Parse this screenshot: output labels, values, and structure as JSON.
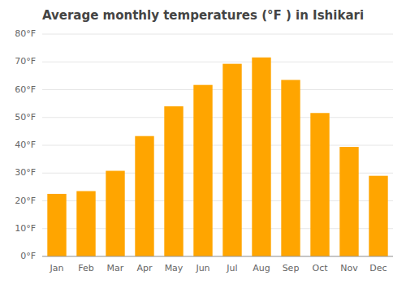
{
  "chart_data": {
    "type": "bar",
    "title": "Average monthly temperatures (°F ) in Ishikari",
    "categories": [
      "Jan",
      "Feb",
      "Mar",
      "Apr",
      "May",
      "Jun",
      "Jul",
      "Aug",
      "Sep",
      "Oct",
      "Nov",
      "Dec"
    ],
    "values": [
      22.5,
      23.5,
      30.8,
      43.3,
      54.0,
      61.7,
      69.3,
      71.6,
      63.5,
      51.6,
      39.4,
      29.0
    ],
    "color": "#FFA500",
    "ylim": [
      0,
      80
    ],
    "yticks": [
      {
        "value": 0,
        "label": "0°F"
      },
      {
        "value": 10,
        "label": "10°F"
      },
      {
        "value": 20,
        "label": "20°F"
      },
      {
        "value": 30,
        "label": "30°F"
      },
      {
        "value": 40,
        "label": "40°F"
      },
      {
        "value": 50,
        "label": "50°F"
      },
      {
        "value": 60,
        "label": "60°F"
      },
      {
        "value": 70,
        "label": "70°F"
      },
      {
        "value": 80,
        "label": "80°F"
      }
    ],
    "grid": true
  }
}
